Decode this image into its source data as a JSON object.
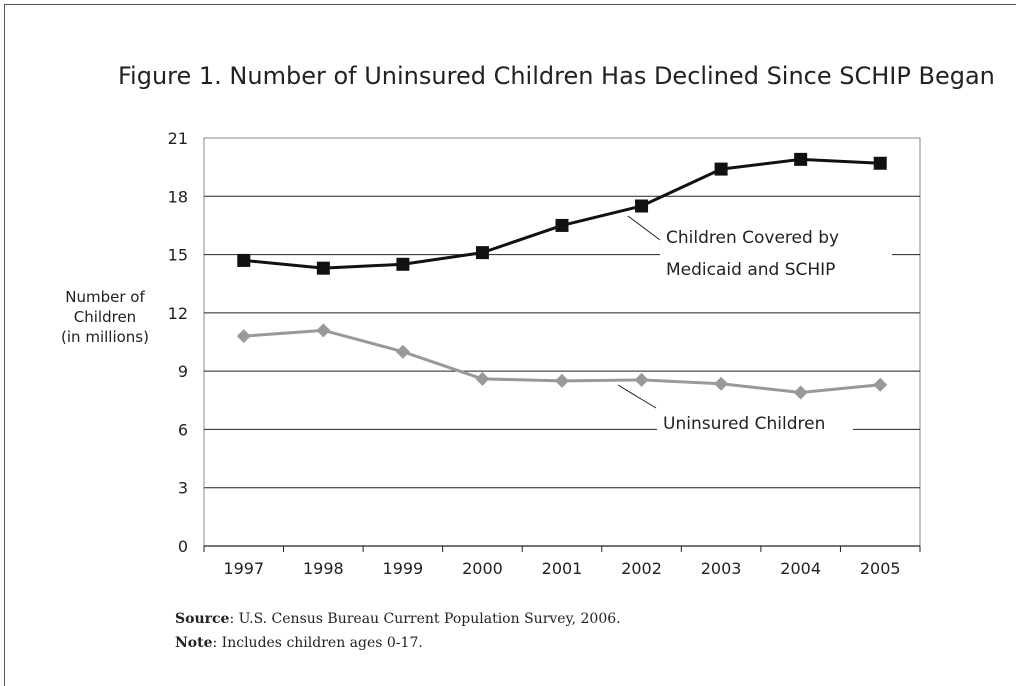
{
  "chart_data": {
    "type": "line",
    "title": "Figure 1. Number of Uninsured Children Has Declined Since SCHIP Began",
    "ylabel": [
      "Number of",
      "Children",
      "(in millions)"
    ],
    "xlabel": "",
    "categories": [
      "1997",
      "1998",
      "1999",
      "2000",
      "2001",
      "2002",
      "2003",
      "2004",
      "2005"
    ],
    "ylim": [
      0,
      21
    ],
    "yticks": [
      "0",
      "3",
      "6",
      "9",
      "12",
      "15",
      "18",
      "21"
    ],
    "grid": "horizontal",
    "series": [
      {
        "name": "Children Covered by Medicaid and SCHIP",
        "label_lines": [
          "Children Covered by",
          "Medicaid and SCHIP"
        ],
        "values": [
          14.7,
          14.3,
          14.5,
          15.1,
          16.5,
          17.5,
          19.4,
          19.9,
          19.7
        ],
        "color": "#111111",
        "marker": "square"
      },
      {
        "name": "Uninsured Children",
        "label_lines": [
          "Uninsured Children"
        ],
        "values": [
          10.8,
          11.1,
          10.0,
          8.6,
          8.5,
          8.55,
          8.35,
          7.9,
          8.3
        ],
        "color": "#999999",
        "marker": "diamond"
      }
    ]
  },
  "notes": {
    "source_label": "Source",
    "source_text": ": U.S. Census Bureau Current Population Survey, 2006.",
    "note_label": "Note",
    "note_text": ": Includes children ages 0-17."
  }
}
